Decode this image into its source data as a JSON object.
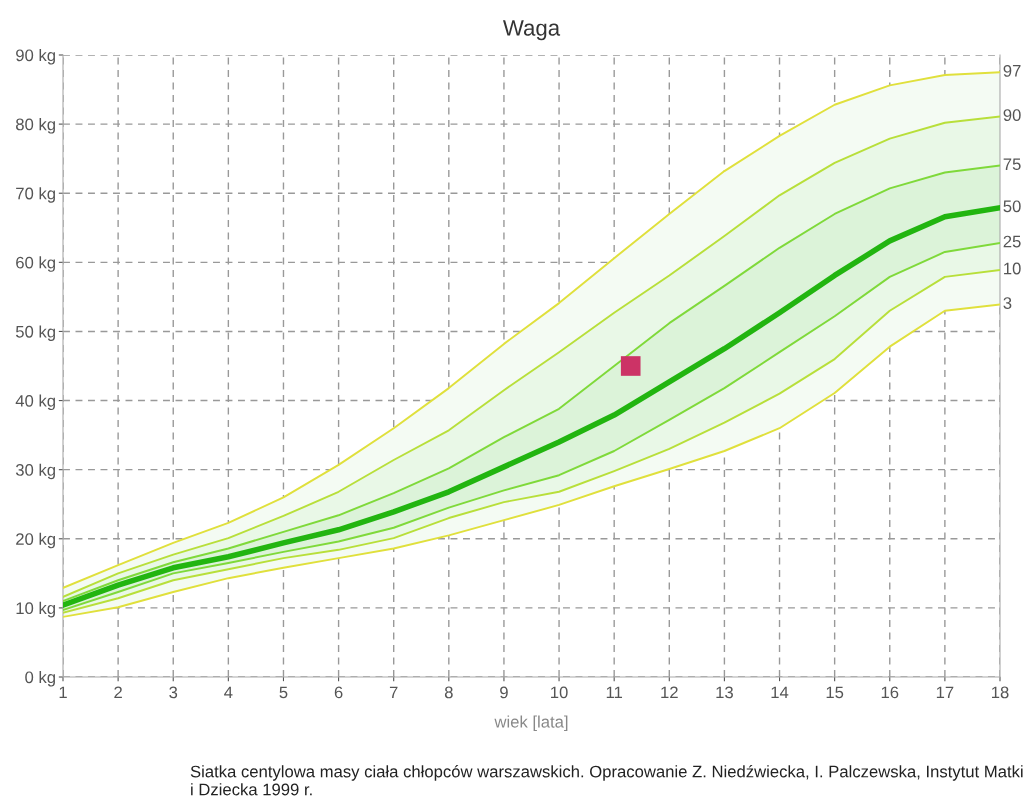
{
  "chart_data": {
    "type": "line",
    "title": "Waga",
    "xlabel": "wiek [lata]",
    "x": [
      1,
      2,
      3,
      4,
      5,
      6,
      7,
      8,
      9,
      10,
      11,
      12,
      13,
      14,
      15,
      16,
      17,
      18
    ],
    "series": [
      {
        "name": "97",
        "color": "#e0e03c",
        "values": [
          12.9,
          16.2,
          19.4,
          22.3,
          26,
          30.7,
          36,
          41.8,
          48.2,
          54.1,
          60.6,
          67,
          73.2,
          78.3,
          82.8,
          85.6,
          87.1,
          87.5
        ],
        "upper": [
          12.9,
          16.2,
          19.4,
          22.3,
          26,
          30.7,
          36,
          41.8,
          48.2,
          54.1,
          60.6,
          67,
          73.2,
          78.3,
          82.8,
          85.6,
          87.1,
          87.5
        ],
        "lower": [
          8.7,
          10.1,
          12.3,
          14.3,
          15.8,
          17.2,
          18.6,
          20.5,
          22.7,
          24.9,
          27.6,
          30.1,
          32.7,
          36,
          41.1,
          47.8,
          53,
          53.9
        ]
      },
      {
        "name": "90",
        "color": "#b8df3a",
        "values": [
          11.6,
          15,
          17.7,
          20.1,
          23.3,
          26.8,
          31.4,
          35.7,
          41.5,
          47,
          52.7,
          58.1,
          63.8,
          69.7,
          74.4,
          77.9,
          80.2,
          81.1
        ],
        "upper": [
          11.6,
          15,
          17.7,
          20.1,
          23.3,
          26.8,
          31.4,
          35.7,
          41.5,
          47,
          52.7,
          58.1,
          63.8,
          69.7,
          74.4,
          77.9,
          80.2,
          81.1
        ],
        "lower": [
          9.3,
          11.4,
          14,
          15.6,
          17.2,
          18.4,
          20.1,
          23,
          25.3,
          26.8,
          29.8,
          33,
          36.8,
          41,
          46,
          53,
          57.9,
          58.9
        ]
      },
      {
        "name": "75",
        "color": "#7fd93a",
        "values": [
          11,
          14,
          16.6,
          18.6,
          21,
          23.4,
          26.6,
          30.2,
          34.7,
          38.8,
          45,
          51.2,
          56.6,
          62.1,
          67,
          70.7,
          73,
          74
        ],
        "upper": [
          11,
          14,
          16.6,
          18.6,
          21,
          23.4,
          26.6,
          30.2,
          34.7,
          38.8,
          45,
          51.2,
          56.6,
          62.1,
          67,
          70.7,
          73,
          74
        ],
        "lower": [
          9.7,
          12.3,
          15,
          16.5,
          18.1,
          19.6,
          21.6,
          24.5,
          27,
          29.2,
          32.7,
          37.2,
          41.8,
          47,
          52.2,
          57.9,
          61.5,
          62.8
        ]
      },
      {
        "name": "50",
        "color": "#22b510",
        "values": [
          10.4,
          13.3,
          15.8,
          17.4,
          19.4,
          21.3,
          23.9,
          26.8,
          30.4,
          34,
          37.9,
          42.7,
          47.5,
          52.7,
          58.1,
          63.1,
          66.6,
          67.9
        ]
      },
      {
        "name": "25",
        "color": "#7fd93a",
        "values": [
          9.7,
          12.3,
          15,
          16.5,
          18.1,
          19.6,
          21.6,
          24.5,
          27,
          29.2,
          32.7,
          37.2,
          41.8,
          47,
          52.2,
          57.9,
          61.5,
          62.8
        ]
      },
      {
        "name": "10",
        "color": "#b8df3a",
        "values": [
          9.3,
          11.4,
          14,
          15.6,
          17.2,
          18.4,
          20.1,
          23,
          25.3,
          26.8,
          29.8,
          33,
          36.8,
          41,
          46,
          53,
          57.9,
          58.9
        ]
      },
      {
        "name": "3",
        "color": "#e0e03c",
        "values": [
          8.7,
          10.1,
          12.3,
          14.3,
          15.8,
          17.2,
          18.6,
          20.5,
          22.7,
          24.9,
          27.6,
          30.1,
          32.7,
          36,
          41.1,
          47.8,
          53,
          53.9
        ]
      },
      {
        "type": "scatter",
        "marker": "square",
        "color": "#cc3366",
        "x": [
          11.3
        ],
        "values": [
          45
        ]
      }
    ],
    "xlim": [
      1,
      18
    ],
    "xticks": [
      1,
      2,
      3,
      4,
      5,
      6,
      7,
      8,
      9,
      10,
      11,
      12,
      13,
      14,
      15,
      16,
      17,
      18
    ],
    "ylim": [
      0,
      90
    ],
    "yticks": [
      {
        "value": 0,
        "label": "0 kg"
      },
      {
        "value": 10,
        "label": "10 kg"
      },
      {
        "value": 20,
        "label": "20 kg"
      },
      {
        "value": 30,
        "label": "30 kg"
      },
      {
        "value": 40,
        "label": "40 kg"
      },
      {
        "value": 50,
        "label": "50 kg"
      },
      {
        "value": 60,
        "label": "60 kg"
      },
      {
        "value": 70,
        "label": "70 kg"
      },
      {
        "value": 80,
        "label": "80 kg"
      },
      {
        "value": 90,
        "label": "90 kg"
      }
    ],
    "grid": true,
    "annotations": [
      "Siatka centylowa masy ciała chłopców warszawskich. Opracowanie Z. Niedźwiecka, I. Palczewska, Instytut Matki i Dziecka 1999 r."
    ]
  }
}
